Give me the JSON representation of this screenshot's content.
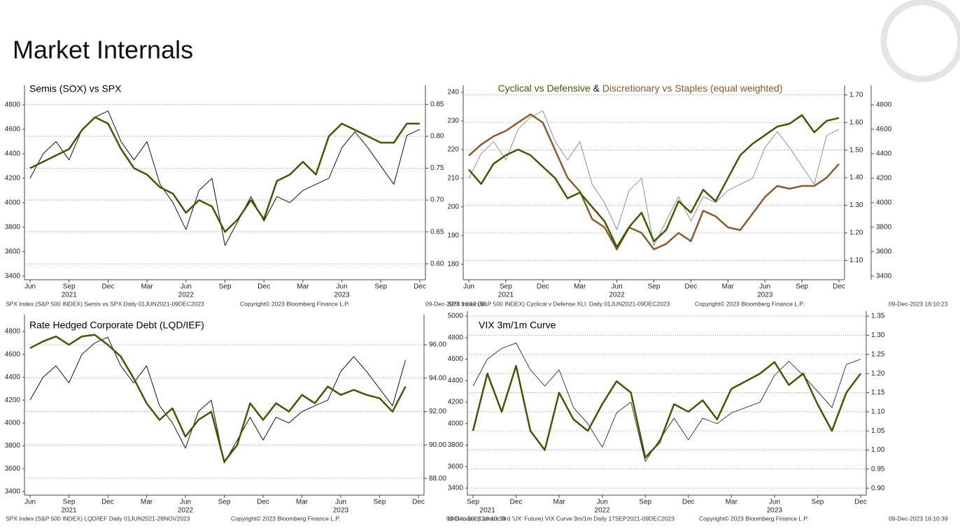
{
  "title": "Market Internals",
  "chart_data": [
    {
      "type": "line",
      "title": "Semis (SOX) vs SPX",
      "x": [
        "2021-06",
        "2021-07",
        "2021-08",
        "2021-09",
        "2021-10",
        "2021-11",
        "2021-12",
        "2022-01",
        "2022-02",
        "2022-03",
        "2022-04",
        "2022-05",
        "2022-06",
        "2022-07",
        "2022-08",
        "2022-09",
        "2022-10",
        "2022-11",
        "2022-12",
        "2023-01",
        "2023-02",
        "2023-03",
        "2023-04",
        "2023-05",
        "2023-06",
        "2023-07",
        "2023-08",
        "2023-09",
        "2023-10",
        "2023-11",
        "2023-12"
      ],
      "xticks": [
        {
          "value": "2021-06",
          "label": "Jun"
        },
        {
          "value": "2021-09",
          "label": "Sep"
        },
        {
          "value": "2021-12",
          "label": "Dec"
        },
        {
          "value": "2022-03",
          "label": "Mar"
        },
        {
          "value": "2022-06",
          "label": "Jun"
        },
        {
          "value": "2022-09",
          "label": "Sep"
        },
        {
          "value": "2022-12",
          "label": "Dec"
        },
        {
          "value": "2023-03",
          "label": "Mar"
        },
        {
          "value": "2023-06",
          "label": "Jun"
        },
        {
          "value": "2023-09",
          "label": "Sep"
        },
        {
          "value": "2023-12",
          "label": "Dec"
        }
      ],
      "xyears": [
        {
          "value": "2021-09",
          "label": "2021"
        },
        {
          "value": "2022-06",
          "label": "2022"
        },
        {
          "value": "2023-06",
          "label": "2023"
        }
      ],
      "ylim": [
        3370,
        4960
      ],
      "yticks": [
        3400,
        3600,
        3800,
        4000,
        4200,
        4400,
        4600,
        4800
      ],
      "y2lim": [
        0.575,
        0.88
      ],
      "y2ticks": [
        {
          "value": 0.6,
          "label": "0.60"
        },
        0.65,
        {
          "value": 0.7,
          "label": "0.70"
        },
        0.75,
        {
          "value": 0.8,
          "label": "0.80"
        },
        0.85
      ],
      "grid": "y2",
      "series": [
        {
          "color": "#111111",
          "width": 1,
          "axis": "y",
          "values": [
            4200,
            4400,
            4500,
            4350,
            4600,
            4700,
            4750,
            4500,
            4350,
            4500,
            4150,
            4000,
            3780,
            4100,
            4200,
            3650,
            3850,
            4050,
            3850,
            4050,
            4000,
            4100,
            4150,
            4200,
            4450,
            4580,
            4450,
            4300,
            4150,
            4550,
            4600
          ]
        },
        {
          "color": "#3d5a00",
          "width": 2.5,
          "axis": "y2",
          "values": [
            0.75,
            0.76,
            0.77,
            0.78,
            0.81,
            0.83,
            0.82,
            0.78,
            0.75,
            0.74,
            0.72,
            0.71,
            0.68,
            0.7,
            0.69,
            0.65,
            0.67,
            0.7,
            0.67,
            0.73,
            0.74,
            0.76,
            0.74,
            0.8,
            0.82,
            0.81,
            0.8,
            0.79,
            0.79,
            0.82,
            0.82
          ]
        }
      ],
      "source": "SPX Index (S&P 500 INDEX) Semis vs SPX  Daily 01JUN2021-09DEC2023",
      "copyright": "Copyright© 2023 Bloomberg Finance L.P.",
      "timestamp": "09-Dec-2023  16:10:08"
    },
    {
      "type": "line",
      "title_parts": [
        {
          "text": "Cyclical vs Defensive",
          "color": "#3d5a00"
        },
        {
          "text": " & ",
          "color": "#111111"
        },
        {
          "text": "Discretionary vs Staples (equal weighted)",
          "color": "#8b5a2b"
        }
      ],
      "x": [
        "2021-06",
        "2021-07",
        "2021-08",
        "2021-09",
        "2021-10",
        "2021-11",
        "2021-12",
        "2022-01",
        "2022-02",
        "2022-03",
        "2022-04",
        "2022-05",
        "2022-06",
        "2022-07",
        "2022-08",
        "2022-09",
        "2022-10",
        "2022-11",
        "2022-12",
        "2023-01",
        "2023-02",
        "2023-03",
        "2023-04",
        "2023-05",
        "2023-06",
        "2023-07",
        "2023-08",
        "2023-09",
        "2023-10",
        "2023-11",
        "2023-12"
      ],
      "xticks": [
        {
          "value": "2021-06",
          "label": "Jun"
        },
        {
          "value": "2021-09",
          "label": "Sep"
        },
        {
          "value": "2021-12",
          "label": "Dec"
        },
        {
          "value": "2022-03",
          "label": "Mar"
        },
        {
          "value": "2022-06",
          "label": "Jun"
        },
        {
          "value": "2022-09",
          "label": "Sep"
        },
        {
          "value": "2022-12",
          "label": "Dec"
        },
        {
          "value": "2023-03",
          "label": "Mar"
        },
        {
          "value": "2023-06",
          "label": "Jun"
        },
        {
          "value": "2023-09",
          "label": "Sep"
        },
        {
          "value": "2023-12",
          "label": "Dec"
        }
      ],
      "xyears": [
        {
          "value": "2021-09",
          "label": "2021"
        },
        {
          "value": "2022-06",
          "label": "2022"
        },
        {
          "value": "2023-06",
          "label": "2023"
        }
      ],
      "ylim": [
        174.6,
        242.4
      ],
      "yticks": [
        180,
        190,
        200,
        210,
        220,
        230,
        240
      ],
      "y2lim": [
        1.03,
        1.735
      ],
      "y2ticks": [
        {
          "value": 1.1,
          "label": "1.10"
        },
        {
          "value": 1.2,
          "label": "1.20"
        },
        {
          "value": 1.3,
          "label": "1.30"
        },
        {
          "value": 1.4,
          "label": "1.40"
        },
        {
          "value": 1.5,
          "label": "1.50"
        },
        {
          "value": 1.6,
          "label": "1.60"
        },
        {
          "value": 1.7,
          "label": "1.70"
        }
      ],
      "y3lim": [
        3370,
        4960
      ],
      "y3ticks": [
        3400,
        3600,
        3800,
        4000,
        4200,
        4400,
        4600,
        4800
      ],
      "grid": "y2",
      "series": [
        {
          "color": "#777777",
          "width": 0.8,
          "axis": "y3",
          "values": [
            4200,
            4400,
            4500,
            4350,
            4600,
            4700,
            4750,
            4500,
            4350,
            4500,
            4150,
            4000,
            3780,
            4100,
            4200,
            3650,
            3850,
            4050,
            3850,
            4050,
            4000,
            4100,
            4150,
            4200,
            4450,
            4580,
            4450,
            4300,
            4150,
            4550,
            4600
          ]
        },
        {
          "color": "#8b5a2b",
          "width": 2.5,
          "axis": "y2",
          "values": [
            1.48,
            1.52,
            1.55,
            1.57,
            1.6,
            1.63,
            1.6,
            1.5,
            1.4,
            1.35,
            1.25,
            1.22,
            1.14,
            1.22,
            1.2,
            1.14,
            1.16,
            1.2,
            1.17,
            1.28,
            1.26,
            1.22,
            1.21,
            1.27,
            1.33,
            1.37,
            1.36,
            1.37,
            1.37,
            1.4,
            1.45
          ]
        },
        {
          "color": "#3d5a00",
          "width": 2.5,
          "axis": "y",
          "values": [
            213,
            208,
            215,
            218,
            220,
            218,
            214,
            210,
            203,
            205,
            200,
            195,
            186,
            193,
            198,
            188,
            192,
            202,
            198,
            206,
            202,
            210,
            218,
            222,
            225,
            228,
            229,
            232,
            226,
            230,
            231
          ]
        }
      ],
      "source": "SPX Index (S&P 500 INDEX) Cyclical v Defense XLI.  Daily 01JUN2021-09DEC2023",
      "copyright": "Copyright© 2023 Bloomberg Finance L.P.",
      "timestamp": "09-Dec-2023 16:10:23"
    },
    {
      "type": "line",
      "title": "Rate Hedged Corporate Debt (LQD/IEF)",
      "x": [
        "2021-06",
        "2021-07",
        "2021-08",
        "2021-09",
        "2021-10",
        "2021-11",
        "2021-12",
        "2022-01",
        "2022-02",
        "2022-03",
        "2022-04",
        "2022-05",
        "2022-06",
        "2022-07",
        "2022-08",
        "2022-09",
        "2022-10",
        "2022-11",
        "2022-12",
        "2023-01",
        "2023-02",
        "2023-03",
        "2023-04",
        "2023-05",
        "2023-06",
        "2023-07",
        "2023-08",
        "2023-09",
        "2023-10",
        "2023-11",
        "2023-12"
      ],
      "xticks": [
        {
          "value": "2021-06",
          "label": "Jun"
        },
        {
          "value": "2021-09",
          "label": "Sep"
        },
        {
          "value": "2021-12",
          "label": "Dec"
        },
        {
          "value": "2022-03",
          "label": "Mar"
        },
        {
          "value": "2022-06",
          "label": "Jun"
        },
        {
          "value": "2022-09",
          "label": "Sep"
        },
        {
          "value": "2022-12",
          "label": "Dec"
        },
        {
          "value": "2023-03",
          "label": "Mar"
        },
        {
          "value": "2023-06",
          "label": "Jun"
        },
        {
          "value": "2023-09",
          "label": "Sep"
        },
        {
          "value": "2023-12",
          "label": "Dec"
        }
      ],
      "xyears": [
        {
          "value": "2021-09",
          "label": "2021"
        },
        {
          "value": "2022-06",
          "label": "2022"
        },
        {
          "value": "2023-06",
          "label": "2023"
        }
      ],
      "ylim": [
        3369,
        4947
      ],
      "yticks": [
        3400,
        3600,
        3800,
        4000,
        4200,
        4400,
        4600,
        4800
      ],
      "y2lim": [
        87.0,
        97.8
      ],
      "y2ticks": [
        {
          "value": 88,
          "label": "88.00"
        },
        {
          "value": 90,
          "label": "90.00"
        },
        {
          "value": 92,
          "label": "92.00"
        },
        {
          "value": 94,
          "label": "94.00"
        },
        {
          "value": 96,
          "label": "96.00"
        }
      ],
      "grid": "y2",
      "series": [
        {
          "color": "#111111",
          "width": 1,
          "axis": "y",
          "values": [
            4200,
            4400,
            4500,
            4350,
            4600,
            4700,
            4750,
            4500,
            4350,
            4500,
            4150,
            4000,
            3780,
            4100,
            4200,
            3650,
            3850,
            4050,
            3850,
            4050,
            4000,
            4100,
            4150,
            4200,
            4450,
            4580,
            4450,
            4300,
            4150,
            4550,
            null
          ]
        },
        {
          "color": "#3d5a00",
          "width": 2.5,
          "axis": "y2",
          "values": [
            95.8,
            96.2,
            96.5,
            96.0,
            96.5,
            96.6,
            96.0,
            95.3,
            94.0,
            92.5,
            91.5,
            92.2,
            90.5,
            91.5,
            92.0,
            89.0,
            90.0,
            92.5,
            91.5,
            92.5,
            92.0,
            93.0,
            92.5,
            93.5,
            93.0,
            93.3,
            93.0,
            92.8,
            92.0,
            93.5,
            null
          ]
        }
      ],
      "source": "SPX Index (S&P 500 INDEX) LQD/IEF  Daily 01JUN2021-28NOV2023",
      "copyright": "Copyright© 2023 Bloomberg Finance L.P.",
      "timestamp": "09-Dec-2023 16:10:30"
    },
    {
      "type": "line",
      "title": "VIX 3m/1m Curve",
      "x": [
        "2021-09",
        "2021-10",
        "2021-11",
        "2021-12",
        "2022-01",
        "2022-02",
        "2022-03",
        "2022-04",
        "2022-05",
        "2022-06",
        "2022-07",
        "2022-08",
        "2022-09",
        "2022-10",
        "2022-11",
        "2022-12",
        "2023-01",
        "2023-02",
        "2023-03",
        "2023-04",
        "2023-05",
        "2023-06",
        "2023-07",
        "2023-08",
        "2023-09",
        "2023-10",
        "2023-11",
        "2023-12"
      ],
      "xticks": [
        {
          "value": "2021-09",
          "label": "Sep"
        },
        {
          "value": "2021-12",
          "label": "Dec"
        },
        {
          "value": "2022-03",
          "label": "Mar"
        },
        {
          "value": "2022-06",
          "label": "Jun"
        },
        {
          "value": "2022-09",
          "label": "Sep"
        },
        {
          "value": "2022-12",
          "label": "Dec"
        },
        {
          "value": "2023-03",
          "label": "Mar"
        },
        {
          "value": "2023-06",
          "label": "Jun"
        },
        {
          "value": "2023-09",
          "label": "Sep"
        },
        {
          "value": "2023-12",
          "label": "Dec"
        }
      ],
      "xyears": [
        {
          "value": "2021-10",
          "label": "2021"
        },
        {
          "value": "2022-06",
          "label": "2022"
        },
        {
          "value": "2023-06",
          "label": "2023"
        }
      ],
      "ylim": [
        3335,
        5046
      ],
      "yticks": [
        3400,
        3600,
        3800,
        4000,
        4200,
        4400,
        4600,
        4800,
        5000
      ],
      "y2lim": [
        0.882,
        1.363
      ],
      "y2ticks": [
        {
          "value": 0.9,
          "label": "0.90"
        },
        0.95,
        {
          "value": 1.0,
          "label": "1.00"
        },
        1.05,
        {
          "value": 1.1,
          "label": "1.10"
        },
        1.15,
        {
          "value": 1.2,
          "label": "1.20"
        },
        1.25,
        {
          "value": 1.3,
          "label": "1.30"
        },
        1.35
      ],
      "grid": "y2",
      "series": [
        {
          "color": "#111111",
          "width": 0.8,
          "axis": "y",
          "values": [
            4350,
            4600,
            4700,
            4750,
            4500,
            4350,
            4500,
            4150,
            4000,
            3780,
            4100,
            4200,
            3650,
            3850,
            4050,
            3850,
            4050,
            4000,
            4100,
            4150,
            4200,
            4450,
            4580,
            4450,
            4300,
            4150,
            4550,
            4600
          ]
        },
        {
          "color": "#3d5a00",
          "width": 2.5,
          "axis": "y2",
          "values": [
            1.05,
            1.2,
            1.1,
            1.22,
            1.05,
            1.0,
            1.15,
            1.08,
            1.05,
            1.12,
            1.18,
            1.15,
            0.98,
            1.02,
            1.12,
            1.1,
            1.13,
            1.08,
            1.16,
            1.18,
            1.2,
            1.23,
            1.17,
            1.2,
            1.12,
            1.05,
            1.15,
            1.2
          ]
        }
      ],
      "source": "UX3 Index (Generic 3rd 'UX' Future) VIX Curve 3m/1m  Daily 17SEP2021-09DEC2023",
      "copyright": "Copyright© 2023 Bloomberg Finance L.P.",
      "timestamp": "09-Dec-2023 16:10:39"
    }
  ]
}
